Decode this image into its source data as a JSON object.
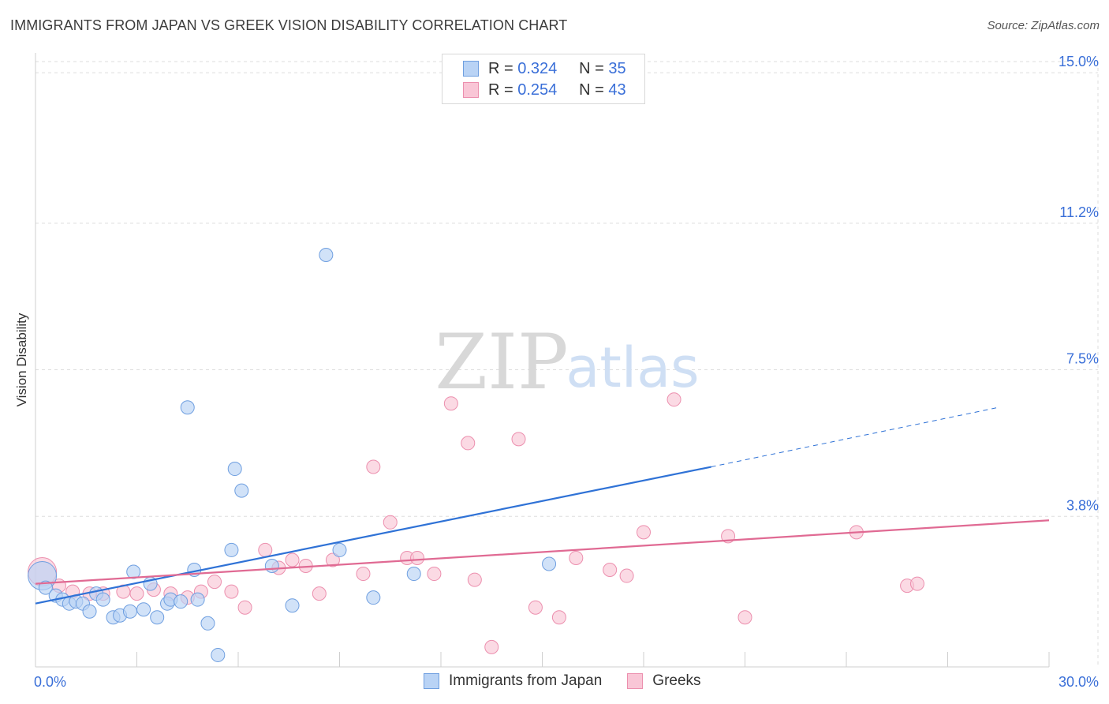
{
  "title": "IMMIGRANTS FROM JAPAN VS GREEK VISION DISABILITY CORRELATION CHART",
  "source": "Source: ZipAtlas.com",
  "watermark": {
    "zip": "ZIP",
    "atlas": "atlas"
  },
  "legend": {
    "rows": [
      {
        "r_label": "R =",
        "r_value": "0.324",
        "n_label": "N =",
        "n_value": "35"
      },
      {
        "r_label": "R =",
        "r_value": "0.254",
        "n_label": "N =",
        "n_value": "43"
      }
    ],
    "bottom": [
      "Immigrants from Japan",
      "Greeks"
    ]
  },
  "colors": {
    "japan_fill": "#b9d3f5",
    "japan_stroke": "#6f9fe0",
    "japan_line": "#2f72d6",
    "greeks_fill": "#f9c6d6",
    "greeks_stroke": "#ec8fae",
    "greeks_line": "#e06a93",
    "tick_label": "#3a6fd8",
    "grid": "#dddddd"
  },
  "chart_data": {
    "type": "scatter",
    "title": "IMMIGRANTS FROM JAPAN VS GREEK VISION DISABILITY CORRELATION CHART",
    "xlabel": "",
    "ylabel": "Vision Disability",
    "xlim": [
      0,
      30
    ],
    "ylim": [
      0,
      15.5
    ],
    "x_tick_labels": [
      {
        "value": 0,
        "label": "0.0%"
      },
      {
        "value": 30,
        "label": "30.0%"
      }
    ],
    "y_tick_labels": [
      {
        "value": 3.8,
        "label": "3.8%"
      },
      {
        "value": 7.5,
        "label": "7.5%"
      },
      {
        "value": 11.2,
        "label": "11.2%"
      },
      {
        "value": 15.0,
        "label": "15.0%"
      }
    ],
    "series": [
      {
        "name": "Immigrants from Japan",
        "R": 0.324,
        "N": 35,
        "trend": {
          "x0": 0,
          "y0": 1.6,
          "x1": 20,
          "y1": 5.05,
          "dash_to_x": 28.5,
          "dash_to_y": 6.55
        },
        "points": [
          {
            "x": 0.2,
            "y": 2.3,
            "size": "large"
          },
          {
            "x": 0.3,
            "y": 2.0
          },
          {
            "x": 0.6,
            "y": 1.8
          },
          {
            "x": 0.8,
            "y": 1.7
          },
          {
            "x": 1.0,
            "y": 1.6
          },
          {
            "x": 1.2,
            "y": 1.65
          },
          {
            "x": 1.4,
            "y": 1.6
          },
          {
            "x": 1.6,
            "y": 1.4
          },
          {
            "x": 1.8,
            "y": 1.85
          },
          {
            "x": 2.0,
            "y": 1.7
          },
          {
            "x": 2.3,
            "y": 1.25
          },
          {
            "x": 2.5,
            "y": 1.3
          },
          {
            "x": 2.8,
            "y": 1.4
          },
          {
            "x": 2.9,
            "y": 2.4
          },
          {
            "x": 3.2,
            "y": 1.45
          },
          {
            "x": 3.4,
            "y": 2.1
          },
          {
            "x": 3.6,
            "y": 1.25
          },
          {
            "x": 3.9,
            "y": 1.6
          },
          {
            "x": 4.0,
            "y": 1.7
          },
          {
            "x": 4.3,
            "y": 1.65
          },
          {
            "x": 4.5,
            "y": 6.55
          },
          {
            "x": 4.7,
            "y": 2.45
          },
          {
            "x": 4.8,
            "y": 1.7
          },
          {
            "x": 5.1,
            "y": 1.1
          },
          {
            "x": 5.4,
            "y": 0.3
          },
          {
            "x": 5.8,
            "y": 2.95
          },
          {
            "x": 5.9,
            "y": 5.0
          },
          {
            "x": 6.1,
            "y": 4.45
          },
          {
            "x": 7.0,
            "y": 2.55
          },
          {
            "x": 7.6,
            "y": 1.55
          },
          {
            "x": 8.6,
            "y": 10.4
          },
          {
            "x": 9.0,
            "y": 2.95
          },
          {
            "x": 10.0,
            "y": 1.75
          },
          {
            "x": 11.2,
            "y": 2.35
          },
          {
            "x": 15.2,
            "y": 2.6
          }
        ]
      },
      {
        "name": "Greeks",
        "R": 0.254,
        "N": 43,
        "trend": {
          "x0": 0,
          "y0": 2.1,
          "x1": 30,
          "y1": 3.7
        },
        "points": [
          {
            "x": 0.2,
            "y": 2.4,
            "size": "large"
          },
          {
            "x": 0.7,
            "y": 2.05
          },
          {
            "x": 1.1,
            "y": 1.9
          },
          {
            "x": 1.6,
            "y": 1.85
          },
          {
            "x": 2.0,
            "y": 1.85
          },
          {
            "x": 2.6,
            "y": 1.9
          },
          {
            "x": 3.0,
            "y": 1.85
          },
          {
            "x": 3.5,
            "y": 1.95
          },
          {
            "x": 4.0,
            "y": 1.85
          },
          {
            "x": 4.5,
            "y": 1.75
          },
          {
            "x": 4.9,
            "y": 1.9
          },
          {
            "x": 5.3,
            "y": 2.15
          },
          {
            "x": 5.8,
            "y": 1.9
          },
          {
            "x": 6.2,
            "y": 1.5
          },
          {
            "x": 6.8,
            "y": 2.95
          },
          {
            "x": 7.2,
            "y": 2.5
          },
          {
            "x": 7.6,
            "y": 2.7
          },
          {
            "x": 8.0,
            "y": 2.55
          },
          {
            "x": 8.4,
            "y": 1.85
          },
          {
            "x": 8.8,
            "y": 2.7
          },
          {
            "x": 9.7,
            "y": 2.35
          },
          {
            "x": 10.0,
            "y": 5.05
          },
          {
            "x": 10.5,
            "y": 3.65
          },
          {
            "x": 11.0,
            "y": 2.75
          },
          {
            "x": 11.3,
            "y": 2.75
          },
          {
            "x": 11.8,
            "y": 2.35
          },
          {
            "x": 12.3,
            "y": 6.65
          },
          {
            "x": 12.8,
            "y": 5.65
          },
          {
            "x": 13.0,
            "y": 2.2
          },
          {
            "x": 13.5,
            "y": 0.5
          },
          {
            "x": 14.3,
            "y": 5.75
          },
          {
            "x": 14.8,
            "y": 1.5
          },
          {
            "x": 15.5,
            "y": 1.25
          },
          {
            "x": 16.0,
            "y": 2.75
          },
          {
            "x": 17.0,
            "y": 2.45
          },
          {
            "x": 17.5,
            "y": 2.3
          },
          {
            "x": 18.0,
            "y": 3.4
          },
          {
            "x": 18.9,
            "y": 6.75
          },
          {
            "x": 20.5,
            "y": 3.3
          },
          {
            "x": 21.0,
            "y": 1.25
          },
          {
            "x": 24.3,
            "y": 3.4
          },
          {
            "x": 25.8,
            "y": 2.05
          },
          {
            "x": 26.1,
            "y": 2.1
          }
        ]
      }
    ]
  }
}
